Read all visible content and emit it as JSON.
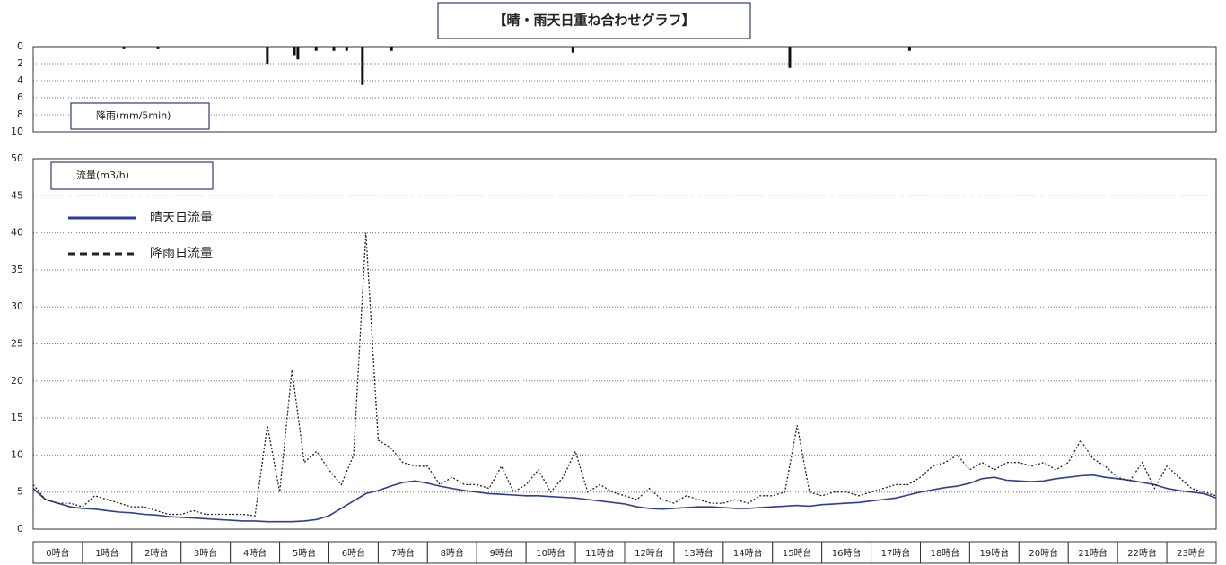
{
  "chart_data": [
    {
      "type": "bar",
      "title": "【晴・雨天日重ね合わせグラフ】",
      "ylabel": "降雨(mm/5min)",
      "x": [
        1.84,
        2.53,
        4.75,
        5.3,
        5.37,
        5.74,
        6.1,
        6.36,
        6.68,
        7.27,
        10.95,
        15.35,
        17.78
      ],
      "values": [
        0.3,
        0.3,
        2,
        1,
        1.5,
        0.5,
        0.5,
        0.5,
        4.5,
        0.5,
        0.7,
        2.5,
        0.5
      ],
      "color": "#111111",
      "xlim": [
        0,
        24
      ],
      "ylim": [
        0,
        10
      ],
      "y_inverted": true,
      "yticks": [
        0,
        2,
        4,
        6,
        8,
        10
      ],
      "grid": true
    },
    {
      "type": "line",
      "ylabel": "流量(m3/h)",
      "categories": [
        "0時台",
        "1時台",
        "2時台",
        "3時台",
        "4時台",
        "5時台",
        "6時台",
        "7時台",
        "8時台",
        "9時台",
        "10時台",
        "11時台",
        "12時台",
        "13時台",
        "14時台",
        "15時台",
        "16時台",
        "17時台",
        "18時台",
        "19時台",
        "20時台",
        "21時台",
        "22時台",
        "23時台"
      ],
      "x": [
        0,
        0.25,
        0.5,
        0.75,
        1,
        1.25,
        1.5,
        1.75,
        2,
        2.25,
        2.5,
        2.75,
        3,
        3.25,
        3.5,
        3.75,
        4,
        4.25,
        4.5,
        4.75,
        5,
        5.25,
        5.5,
        5.75,
        6,
        6.25,
        6.5,
        6.75,
        7,
        7.25,
        7.5,
        7.75,
        8,
        8.25,
        8.5,
        8.75,
        9,
        9.25,
        9.5,
        9.75,
        10,
        10.25,
        10.5,
        10.75,
        11,
        11.25,
        11.5,
        11.75,
        12,
        12.25,
        12.5,
        12.75,
        13,
        13.25,
        13.5,
        13.75,
        14,
        14.25,
        14.5,
        14.75,
        15,
        15.25,
        15.5,
        15.75,
        16,
        16.25,
        16.5,
        16.75,
        17,
        17.25,
        17.5,
        17.75,
        18,
        18.25,
        18.5,
        18.75,
        19,
        19.25,
        19.5,
        19.75,
        20,
        20.25,
        20.5,
        20.75,
        21,
        21.25,
        21.5,
        21.75,
        22,
        22.25,
        22.5,
        22.75,
        23,
        23.25,
        23.5,
        23.75,
        24
      ],
      "series": [
        {
          "name": "晴天日流量",
          "color": "#2e3d99",
          "dashed": false,
          "values": [
            5.5,
            4,
            3.5,
            3,
            2.8,
            2.7,
            2.5,
            2.3,
            2.2,
            2.0,
            1.9,
            1.7,
            1.6,
            1.5,
            1.4,
            1.3,
            1.2,
            1.1,
            1.1,
            1.0,
            1.0,
            1.0,
            1.1,
            1.3,
            1.8,
            2.8,
            3.8,
            4.8,
            5.2,
            5.8,
            6.3,
            6.5,
            6.2,
            5.8,
            5.5,
            5.2,
            5.0,
            4.8,
            4.7,
            4.6,
            4.5,
            4.5,
            4.4,
            4.3,
            4.2,
            4.0,
            3.8,
            3.6,
            3.4,
            3.0,
            2.8,
            2.7,
            2.8,
            2.9,
            3.0,
            3.0,
            2.9,
            2.8,
            2.8,
            2.9,
            3.0,
            3.1,
            3.2,
            3.1,
            3.3,
            3.4,
            3.5,
            3.6,
            3.8,
            4.0,
            4.2,
            4.6,
            5.0,
            5.3,
            5.6,
            5.8,
            6.2,
            6.8,
            7.0,
            6.6,
            6.5,
            6.4,
            6.5,
            6.8,
            7.0,
            7.2,
            7.3,
            7.0,
            6.8,
            6.6,
            6.3,
            6.0,
            5.5,
            5.2,
            5.0,
            4.8,
            4.2
          ]
        },
        {
          "name": "降雨日流量",
          "color": "#222222",
          "dashed": true,
          "values": [
            6,
            4,
            3.5,
            3.5,
            3,
            4.5,
            4,
            3.5,
            3,
            3,
            2.5,
            2,
            2,
            2.5,
            2,
            2,
            2,
            2,
            1.8,
            14,
            5,
            21.5,
            9,
            10.5,
            8,
            6,
            10,
            40,
            12,
            11,
            9,
            8.5,
            8.5,
            6,
            7,
            6,
            6,
            5.5,
            8.5,
            5,
            6,
            8,
            5,
            7,
            10.5,
            5,
            6,
            5,
            4.5,
            4,
            5.5,
            4,
            3.5,
            4.5,
            4,
            3.5,
            3.5,
            4,
            3.5,
            4.5,
            4.5,
            5,
            14,
            5,
            4.5,
            5,
            5,
            4.5,
            5,
            5.5,
            6,
            6,
            7,
            8.5,
            9,
            10,
            8,
            9,
            8,
            9,
            9,
            8.5,
            9,
            8,
            9,
            12,
            9.5,
            8.5,
            7,
            6.5,
            9,
            5.5,
            8.5,
            7,
            5.5,
            5,
            4.5
          ]
        }
      ],
      "xlim": [
        0,
        24
      ],
      "ylim": [
        0,
        50
      ],
      "yticks": [
        0,
        5,
        10,
        15,
        20,
        25,
        30,
        35,
        40,
        45,
        50
      ],
      "grid": true,
      "legend": "top-left"
    }
  ]
}
